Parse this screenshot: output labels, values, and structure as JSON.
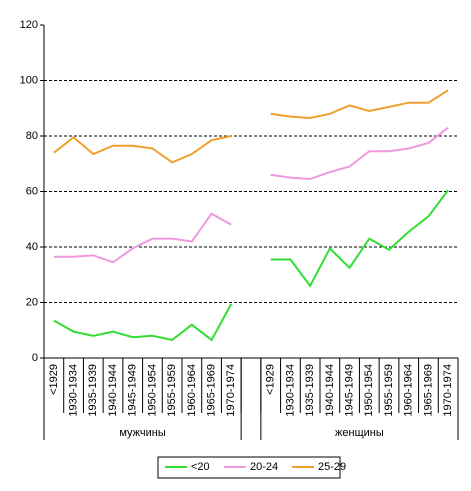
{
  "chart_data": {
    "type": "line",
    "categories": [
      "<1929",
      "1930-1934",
      "1935-1939",
      "1940-1944",
      "1945-1949",
      "1950-1954",
      "1955-1959",
      "1960-1964",
      "1965-1969",
      "1970-1974",
      null,
      "<1929",
      "1930-1934",
      "1935-1939",
      "1940-1944",
      "1945-1949",
      "1950-1954",
      "1955-1959",
      "1960-1964",
      "1965-1969",
      "1970-1974"
    ],
    "groups": [
      "мужчины",
      "женщины"
    ],
    "series": [
      {
        "name": "<20",
        "color": "#33dd33",
        "values": [
          13.5,
          9.5,
          8,
          9.5,
          7.5,
          8,
          6.5,
          12,
          6.5,
          19.5,
          null,
          35.5,
          35.5,
          26,
          39.5,
          32.5,
          43,
          39,
          45.5,
          51,
          60.5
        ]
      },
      {
        "name": "20-24",
        "color": "#ee99dd",
        "values": [
          36.5,
          36.5,
          37,
          34.5,
          39.5,
          43,
          43,
          42,
          52,
          48,
          null,
          66,
          65,
          64.5,
          67,
          69,
          74.5,
          74.5,
          75.5,
          77.5,
          83
        ]
      },
      {
        "name": "25-29",
        "color": "#f0a030",
        "values": [
          74,
          79.5,
          73.5,
          76.5,
          76.5,
          75.5,
          70.5,
          73.5,
          78.5,
          80,
          null,
          88,
          87,
          86.5,
          88,
          91,
          89,
          90.5,
          92,
          92,
          96.5
        ]
      }
    ],
    "ylim": [
      0,
      120
    ],
    "yticks": [
      0,
      20,
      40,
      60,
      80,
      100,
      120
    ],
    "grid": true,
    "legend": "bottom"
  }
}
